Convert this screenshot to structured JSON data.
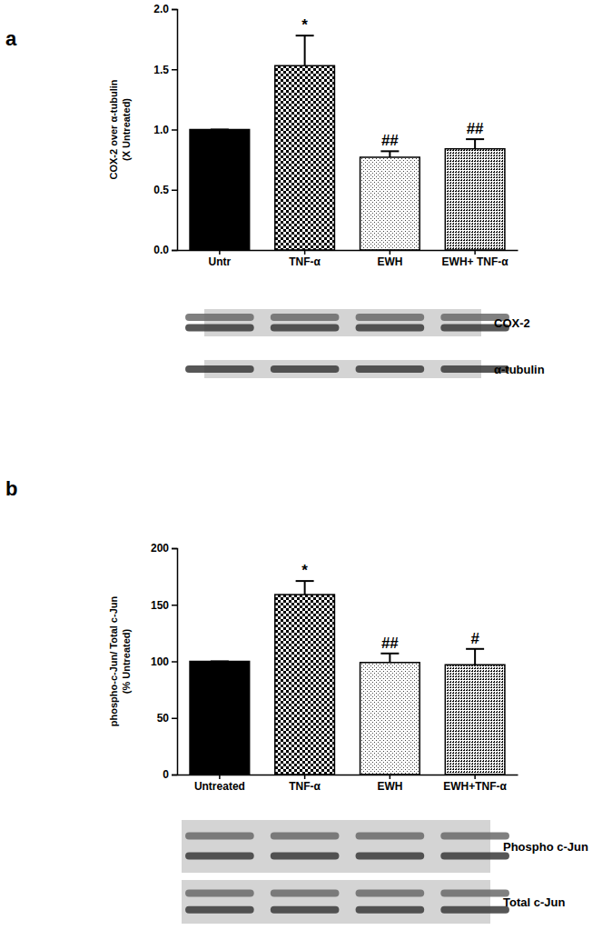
{
  "chart_data": [
    {
      "type": "bar",
      "panel": "a",
      "y_label": "COX-2 over α-tubulin\n(X Untreated)",
      "categories": [
        "Untr",
        "TNF-α",
        "EWH",
        "EWH+ TNF-α"
      ],
      "values": [
        1.0,
        1.53,
        0.77,
        0.84
      ],
      "errors": [
        0,
        0.25,
        0.05,
        0.08
      ],
      "colors": [
        "#000000",
        "#000000",
        "#444444",
        "#000000"
      ],
      "ylim": [
        0,
        2
      ],
      "yticks": [
        {
          "value": 0,
          "label": "0.0"
        },
        {
          "value": 0.5,
          "label": "0.5"
        },
        {
          "value": 1,
          "label": "1.0"
        },
        {
          "value": 1.5,
          "label": "1.5"
        },
        {
          "value": 2,
          "label": "2.0"
        }
      ],
      "annotations": [
        {
          "category": "TNF-α",
          "text": "*"
        },
        {
          "category": "EWH",
          "text": "##"
        },
        {
          "category": "EWH+ TNF-α",
          "text": "##"
        }
      ],
      "blot_labels": [
        "COX-2",
        "α-tubulin"
      ]
    },
    {
      "type": "bar",
      "panel": "b",
      "y_label": "phospho-c-Jun/ Total c-Jun\n(% Untreated)",
      "categories": [
        "Untreated",
        "TNF-α",
        "EWH",
        "EWH+TNF-α"
      ],
      "values": [
        100,
        159,
        99,
        97
      ],
      "errors": [
        0,
        12,
        8,
        14
      ],
      "colors": [
        "#000000",
        "#000000",
        "#444444",
        "#000000"
      ],
      "ylim": [
        0,
        200
      ],
      "yticks": [
        0,
        50,
        100,
        150,
        200
      ],
      "annotations": [
        {
          "category": "TNF-α",
          "text": "*"
        },
        {
          "category": "EWH",
          "text": "##"
        },
        {
          "category": "EWH+TNF-α",
          "text": "#"
        }
      ],
      "blot_labels": [
        "Phospho c-Jun",
        "Total c-Jun"
      ]
    }
  ]
}
